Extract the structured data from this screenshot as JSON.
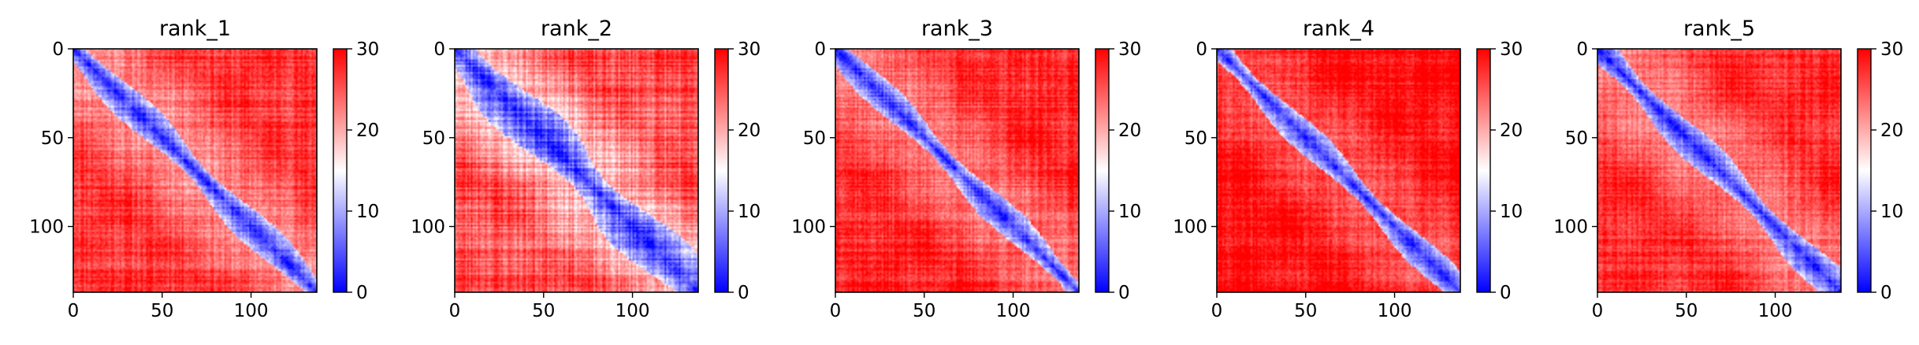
{
  "chart_data": [
    {
      "type": "heatmap",
      "title": "rank_1",
      "n": 137,
      "clim": [
        0,
        30
      ],
      "xticks": [
        0,
        50,
        100
      ],
      "yticks": [
        0,
        50,
        100
      ],
      "cbar_ticks": [
        0,
        10,
        20,
        30
      ],
      "colormap": {
        "low": "#0000ff",
        "mid": "#ffffff",
        "high": "#ff0000"
      },
      "diag_half_width": 10,
      "mid_level": 22,
      "contrast": 1.3,
      "seed": 11
    },
    {
      "type": "heatmap",
      "title": "rank_2",
      "n": 137,
      "clim": [
        0,
        30
      ],
      "xticks": [
        0,
        50,
        100
      ],
      "yticks": [
        0,
        50,
        100
      ],
      "cbar_ticks": [
        0,
        10,
        20,
        30
      ],
      "colormap": {
        "low": "#0000ff",
        "mid": "#ffffff",
        "high": "#ff0000"
      },
      "diag_half_width": 16,
      "mid_level": 19,
      "contrast": 1.8,
      "seed": 23
    },
    {
      "type": "heatmap",
      "title": "rank_3",
      "n": 137,
      "clim": [
        0,
        30
      ],
      "xticks": [
        0,
        50,
        100
      ],
      "yticks": [
        0,
        50,
        100
      ],
      "cbar_ticks": [
        0,
        10,
        20,
        30
      ],
      "colormap": {
        "low": "#0000ff",
        "mid": "#ffffff",
        "high": "#ff0000"
      },
      "diag_half_width": 9,
      "mid_level": 23,
      "contrast": 1.2,
      "seed": 37
    },
    {
      "type": "heatmap",
      "title": "rank_4",
      "n": 137,
      "clim": [
        0,
        30
      ],
      "xticks": [
        0,
        50,
        100
      ],
      "yticks": [
        0,
        50,
        100
      ],
      "cbar_ticks": [
        0,
        10,
        20,
        30
      ],
      "colormap": {
        "low": "#0000ff",
        "mid": "#ffffff",
        "high": "#ff0000"
      },
      "diag_half_width": 9,
      "mid_level": 25,
      "contrast": 1.0,
      "seed": 41
    },
    {
      "type": "heatmap",
      "title": "rank_5",
      "n": 137,
      "clim": [
        0,
        30
      ],
      "xticks": [
        0,
        50,
        100
      ],
      "yticks": [
        0,
        50,
        100
      ],
      "cbar_ticks": [
        0,
        10,
        20,
        30
      ],
      "colormap": {
        "low": "#0000ff",
        "mid": "#ffffff",
        "high": "#ff0000"
      },
      "diag_half_width": 10,
      "mid_level": 23,
      "contrast": 1.2,
      "seed": 53
    }
  ]
}
